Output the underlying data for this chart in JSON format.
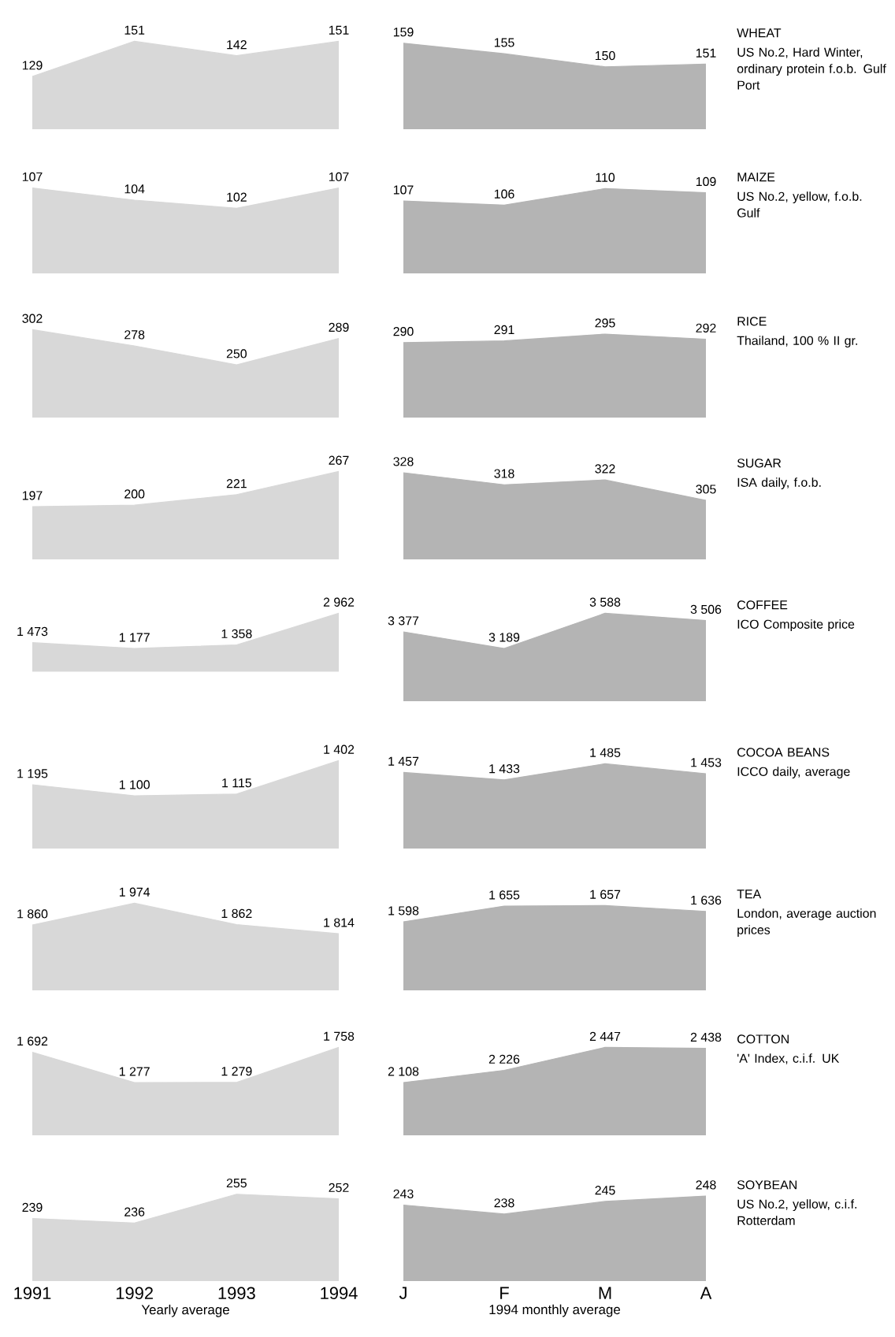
{
  "chart_data": [
    {
      "type": "area",
      "categories": [
        null,
        null,
        null,
        null
      ],
      "values": [
        129,
        151,
        142,
        151
      ],
      "value_labels": [
        "129",
        "151",
        "142",
        "151"
      ],
      "color": "#d8d8d8",
      "tick_labels": false
    },
    {
      "type": "area",
      "categories": [
        null,
        null,
        null,
        null
      ],
      "values": [
        159,
        155,
        150,
        151
      ],
      "value_labels": [
        "159",
        "155",
        "150",
        "151"
      ],
      "color": "#b4b4b4",
      "tick_labels": false
    },
    {
      "type": "area",
      "categories": [
        null,
        null,
        null,
        null
      ],
      "values": [
        107,
        104,
        102,
        107
      ],
      "value_labels": [
        "107",
        "104",
        "102",
        "107"
      ],
      "color": "#d8d8d8",
      "tick_labels": false
    },
    {
      "type": "area",
      "categories": [
        null,
        null,
        null,
        null
      ],
      "values": [
        107,
        106,
        110,
        109
      ],
      "value_labels": [
        "107",
        "106",
        "110",
        "109"
      ],
      "color": "#b4b4b4",
      "tick_labels": false
    },
    {
      "type": "area",
      "categories": [
        null,
        null,
        null,
        null
      ],
      "values": [
        302,
        278,
        250,
        289
      ],
      "value_labels": [
        "302",
        "278",
        "250",
        "289"
      ],
      "color": "#d8d8d8",
      "tick_labels": false
    },
    {
      "type": "area",
      "categories": [
        null,
        null,
        null,
        null
      ],
      "values": [
        290,
        291,
        295,
        292
      ],
      "value_labels": [
        "290",
        "291",
        "295",
        "292"
      ],
      "color": "#b4b4b4",
      "tick_labels": false
    },
    {
      "type": "area",
      "categories": [
        null,
        null,
        null,
        null
      ],
      "values": [
        197,
        200,
        221,
        267
      ],
      "value_labels": [
        "197",
        "200",
        "221",
        "267"
      ],
      "color": "#d8d8d8",
      "tick_labels": false
    },
    {
      "type": "area",
      "categories": [
        null,
        null,
        null,
        null
      ],
      "values": [
        328,
        318,
        322,
        305
      ],
      "value_labels": [
        "328",
        "318",
        "322",
        "305"
      ],
      "color": "#b4b4b4",
      "tick_labels": false
    },
    {
      "type": "area",
      "categories": [
        null,
        null,
        null,
        null
      ],
      "values": [
        1473,
        1177,
        1358,
        2962
      ],
      "value_labels": [
        "1 473",
        "1 177",
        "1 358",
        "2 962"
      ],
      "color": "#d8d8d8",
      "tick_labels": false
    },
    {
      "type": "area",
      "categories": [
        null,
        null,
        null,
        null
      ],
      "values": [
        3377,
        3189,
        3588,
        3506
      ],
      "value_labels": [
        "3 377",
        "3 189",
        "3 588",
        "3 506"
      ],
      "color": "#b4b4b4",
      "tick_labels": false
    },
    {
      "type": "area",
      "categories": [
        null,
        null,
        null,
        null
      ],
      "values": [
        1195,
        1100,
        1115,
        1402
      ],
      "value_labels": [
        "1 195",
        "1 100",
        "1 115",
        "1 402"
      ],
      "color": "#d8d8d8",
      "tick_labels": false
    },
    {
      "type": "area",
      "categories": [
        null,
        null,
        null,
        null
      ],
      "values": [
        1457,
        1433,
        1485,
        1453
      ],
      "value_labels": [
        "1 457",
        "1 433",
        "1 485",
        "1 453"
      ],
      "color": "#b4b4b4",
      "tick_labels": false
    },
    {
      "type": "area",
      "categories": [
        null,
        null,
        null,
        null
      ],
      "values": [
        1860,
        1974,
        1862,
        1814
      ],
      "value_labels": [
        "1 860",
        "1 974",
        "1 862",
        "1 814"
      ],
      "color": "#d8d8d8",
      "tick_labels": false
    },
    {
      "type": "area",
      "categories": [
        null,
        null,
        null,
        null
      ],
      "values": [
        1598,
        1655,
        1657,
        1636
      ],
      "value_labels": [
        "1 598",
        "1 655",
        "1 657",
        "1 636"
      ],
      "color": "#b4b4b4",
      "tick_labels": false
    },
    {
      "type": "area",
      "categories": [
        null,
        null,
        null,
        null
      ],
      "values": [
        1692,
        1277,
        1279,
        1758
      ],
      "value_labels": [
        "1 692",
        "1 277",
        "1 279",
        "1 758"
      ],
      "color": "#d8d8d8",
      "tick_labels": false
    },
    {
      "type": "area",
      "categories": [
        null,
        null,
        null,
        null
      ],
      "values": [
        2108,
        2226,
        2447,
        2438
      ],
      "value_labels": [
        "2 108",
        "2 226",
        "2 447",
        "2 438"
      ],
      "color": "#b4b4b4",
      "tick_labels": false
    },
    {
      "type": "area",
      "categories": [
        "1991",
        "1992",
        "1993",
        "1994"
      ],
      "values": [
        239,
        236,
        255,
        252
      ],
      "value_labels": [
        "239",
        "236",
        "255",
        "252"
      ],
      "color": "#d8d8d8",
      "tick_labels": "x",
      "xlabel": "Yearly average"
    },
    {
      "type": "area",
      "categories": [
        "J",
        "F",
        "M",
        "A"
      ],
      "values": [
        243,
        238,
        245,
        248
      ],
      "value_labels": [
        "243",
        "238",
        "245",
        "248"
      ],
      "color": "#b4b4b4",
      "tick_labels": "x",
      "xlabel": "1994 monthly average"
    },
    {
      "type": "other",
      "annotations": [
        "WHEAT",
        "US No.2, Hard Winter, ordinary protein f.o.b. Gulf Port",
        "MAIZE",
        "US No.2, yellow, f.o.b. Gulf",
        "RICE",
        "Thailand, 100 % II gr.",
        "SUGAR",
        "ISA daily, f.o.b.",
        "COFFEE",
        "ICO Composite price",
        "COCOA BEANS",
        "ICCO daily, average",
        "TEA",
        "London, average auction prices",
        "COTTON",
        "'A' Index, c.i.f. UK",
        "SOYBEAN",
        "US No.2, yellow, c.i.f. Rotterdam"
      ]
    }
  ]
}
